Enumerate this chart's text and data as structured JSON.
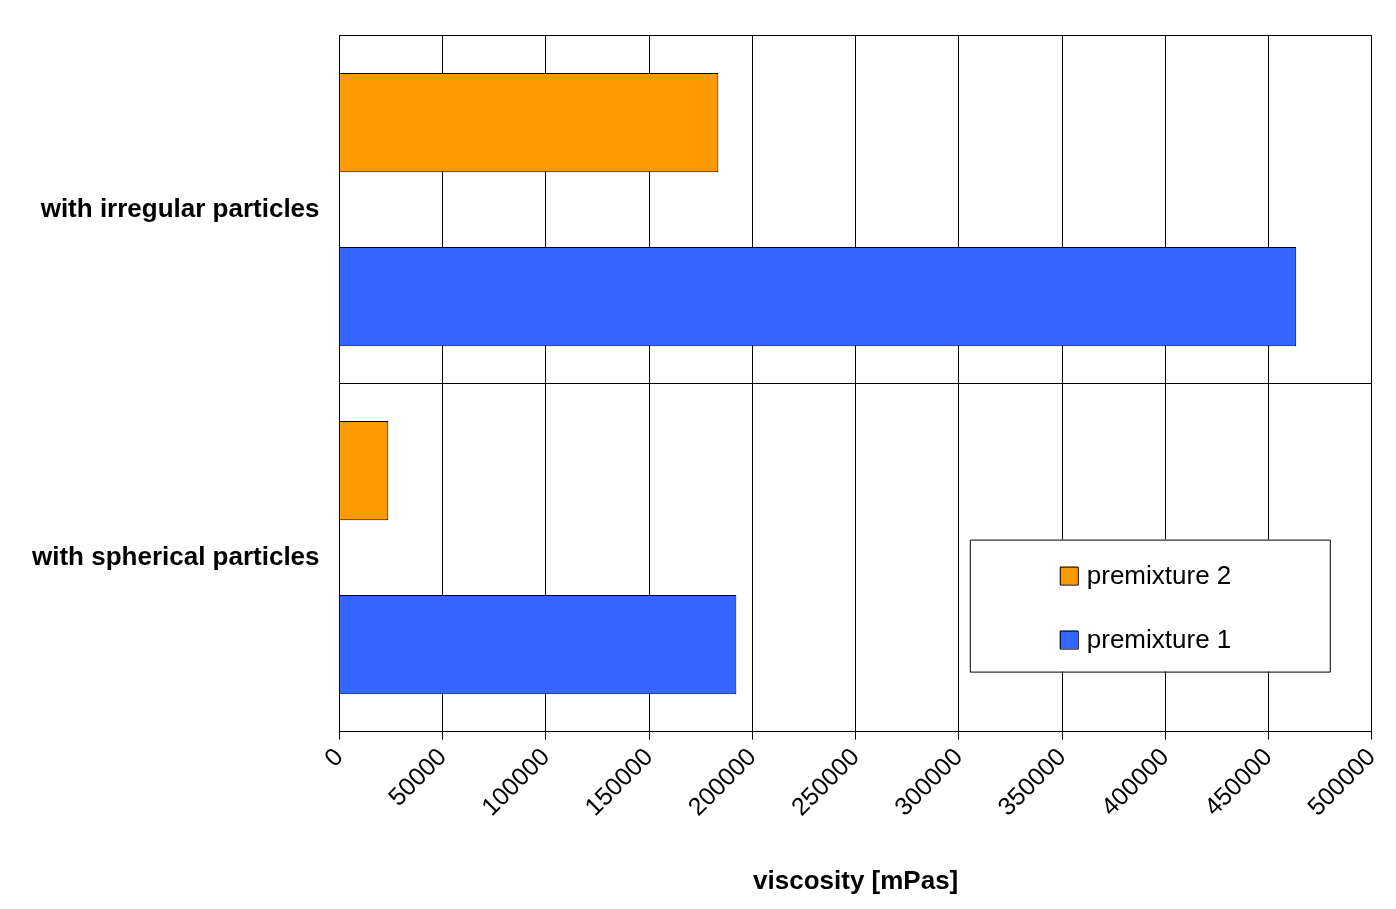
{
  "chart_data": {
    "type": "bar",
    "orientation": "horizontal",
    "xlabel": "viscosity [mPas]",
    "categories": [
      "with irregular particles",
      "with spherical particles"
    ],
    "series": [
      {
        "name": "premixture 2",
        "color": "#ff9900",
        "values": [
          183500,
          23600
        ]
      },
      {
        "name": "premixture 1",
        "color": "#3366ff",
        "values": [
          463400,
          192200
        ]
      }
    ],
    "xlim": [
      0,
      500000
    ],
    "xticks": [
      0,
      50000,
      100000,
      150000,
      200000,
      250000,
      300000,
      350000,
      400000,
      450000,
      500000
    ],
    "grid": true,
    "legend": "bottom right"
  }
}
